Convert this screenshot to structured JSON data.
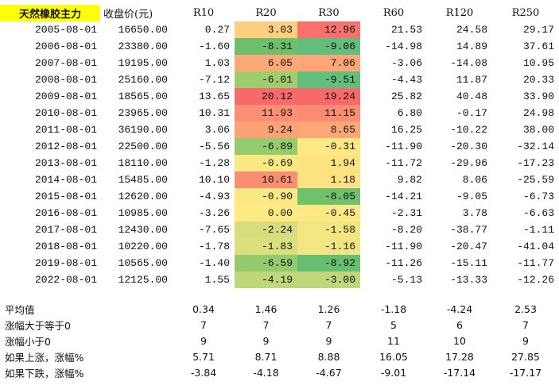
{
  "table": {
    "title": "天然橡胶主力",
    "headers": [
      "收盘价(元)",
      "R10",
      "R20",
      "R30",
      "R60",
      "R120",
      "R250"
    ],
    "rows": [
      {
        "date": "2005-08-01",
        "close": "16650.00",
        "values": [
          "0.27",
          "3.03",
          "12.96",
          "21.53",
          "24.58",
          "29.17"
        ]
      },
      {
        "date": "2006-08-01",
        "close": "23380.00",
        "values": [
          "-1.60",
          "-8.31",
          "-9.06",
          "-14.98",
          "14.89",
          "37.61"
        ]
      },
      {
        "date": "2007-08-01",
        "close": "19195.00",
        "values": [
          "1.03",
          "6.05",
          "7.06",
          "-3.06",
          "-14.08",
          "10.95"
        ]
      },
      {
        "date": "2008-08-01",
        "close": "25160.00",
        "values": [
          "-7.12",
          "-6.01",
          "-9.51",
          "-4.43",
          "11.87",
          "20.33"
        ]
      },
      {
        "date": "2009-08-01",
        "close": "18565.00",
        "values": [
          "13.65",
          "20.12",
          "19.24",
          "25.82",
          "40.48",
          "33.90"
        ]
      },
      {
        "date": "2010-08-01",
        "close": "23965.00",
        "values": [
          "10.31",
          "11.93",
          "11.15",
          "6.80",
          "-0.17",
          "24.98"
        ]
      },
      {
        "date": "2011-08-01",
        "close": "36190.00",
        "values": [
          "3.06",
          "9.24",
          "8.65",
          "16.25",
          "-10.22",
          "38.00"
        ]
      },
      {
        "date": "2012-08-01",
        "close": "22500.00",
        "values": [
          "-5.56",
          "-6.89",
          "-0.31",
          "-11.90",
          "-20.30",
          "-32.14"
        ]
      },
      {
        "date": "2013-08-01",
        "close": "18110.00",
        "values": [
          "-1.28",
          "-0.69",
          "1.94",
          "-11.72",
          "-29.96",
          "-17.23"
        ]
      },
      {
        "date": "2014-08-01",
        "close": "15485.00",
        "values": [
          "10.10",
          "10.61",
          "1.18",
          "9.82",
          "8.06",
          "-25.59"
        ]
      },
      {
        "date": "2015-08-01",
        "close": "12620.00",
        "values": [
          "-4.93",
          "-0.90",
          "-8.05",
          "-14.21",
          "-9.05",
          "-6.73"
        ]
      },
      {
        "date": "2016-08-01",
        "close": "10985.00",
        "values": [
          "-3.26",
          "0.00",
          "-0.45",
          "-2.31",
          "3.78",
          "-6.63"
        ]
      },
      {
        "date": "2017-08-01",
        "close": "12430.00",
        "values": [
          "-7.65",
          "-2.24",
          "-1.58",
          "-8.20",
          "-38.77",
          "-1.11"
        ]
      },
      {
        "date": "2018-08-01",
        "close": "10220.00",
        "values": [
          "-1.78",
          "-1.83",
          "-1.16",
          "-11.90",
          "-20.47",
          "-41.04"
        ]
      },
      {
        "date": "2019-08-01",
        "close": "10565.00",
        "values": [
          "-1.40",
          "-6.59",
          "-8.92",
          "-11.26",
          "-15.11",
          "-11.77"
        ]
      },
      {
        "date": "2022-08-01",
        "close": "12125.00",
        "values": [
          "1.55",
          "-4.19",
          "-3.00",
          "-5.13",
          "-13.33",
          "-12.26"
        ]
      }
    ],
    "heat_colors": {
      "r20": [
        "#fdcf7e",
        "#6dbf6a",
        "#fbaa77",
        "#9fcd6e",
        "#f8696b",
        "#fa8f73",
        "#fba276",
        "#96cb6d",
        "#fce882",
        "#fa8e73",
        "#f9e983",
        "#fee983",
        "#d6dd7c",
        "#dbdf7d",
        "#92ca6d",
        "#c0d67a"
      ],
      "r30": [
        "#f8716d",
        "#63be7b",
        "#fca577",
        "#63be7b",
        "#f8696b",
        "#fa8c73",
        "#fba877",
        "#fde883",
        "#fde282",
        "#fee282",
        "#70c16d",
        "#fde983",
        "#f2e683",
        "#f1e683",
        "#66bf70",
        "#c0d67a"
      ]
    }
  },
  "summary": [
    {
      "label": "平均值",
      "values": [
        "0.34",
        "1.46",
        "1.26",
        "-1.18",
        "-4.24",
        "2.53"
      ]
    },
    {
      "label": "涨幅大于等于0",
      "values": [
        "7",
        "7",
        "7",
        "5",
        "6",
        "7"
      ]
    },
    {
      "label": "涨幅小于0",
      "values": [
        "9",
        "9",
        "9",
        "11",
        "10",
        "9"
      ]
    },
    {
      "label": "如果上涨，涨幅%",
      "values": [
        "5.71",
        "8.71",
        "8.88",
        "16.05",
        "17.28",
        "27.85"
      ]
    },
    {
      "label": "如果下跌，涨幅%",
      "values": [
        "-3.84",
        "-4.18",
        "-4.67",
        "-9.01",
        "-17.14",
        "-17.17"
      ]
    }
  ]
}
